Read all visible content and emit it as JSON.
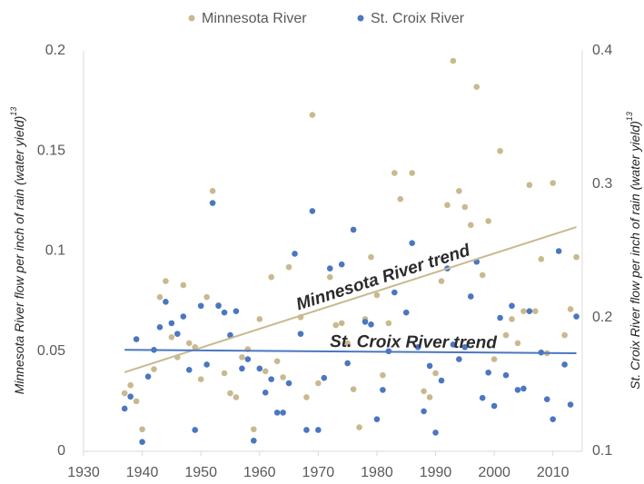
{
  "chart_data": {
    "type": "scatter",
    "y_label": "Minnesota River flow per inch of rain (water yield)",
    "y_label_sup": "13",
    "y2_label": "St. Croix River flow per inch of rain (water yield)",
    "y2_label_sup": "13",
    "xlim": [
      1930,
      2015
    ],
    "xticks": [
      1930,
      1940,
      1950,
      1960,
      1970,
      1980,
      1990,
      2000,
      2010
    ],
    "ylim": [
      0,
      0.2
    ],
    "yticks": [
      0,
      0.05,
      0.1,
      0.15,
      0.2
    ],
    "y2lim": [
      0.1,
      0.4
    ],
    "y2ticks": [
      0.1,
      0.2,
      0.3,
      0.4
    ],
    "grid": false,
    "legend": "top",
    "series": [
      {
        "name": "Minnesota River",
        "color": "#c8b98f",
        "x": [
          1937,
          1938,
          1939,
          1940,
          1942,
          1943,
          1944,
          1945,
          1946,
          1947,
          1948,
          1949,
          1950,
          1951,
          1952,
          1953,
          1954,
          1955,
          1956,
          1957,
          1958,
          1959,
          1960,
          1961,
          1962,
          1963,
          1964,
          1965,
          1967,
          1968,
          1969,
          1970,
          1972,
          1973,
          1974,
          1975,
          1976,
          1977,
          1978,
          1979,
          1980,
          1981,
          1982,
          1983,
          1984,
          1986,
          1988,
          1989,
          1990,
          1991,
          1992,
          1993,
          1994,
          1995,
          1996,
          1997,
          1998,
          1999,
          2000,
          2001,
          2002,
          2003,
          2004,
          2005,
          2006,
          2007,
          2008,
          2009,
          2010,
          2012,
          2013,
          2014
        ],
        "values": [
          0.029,
          0.033,
          0.025,
          0.011,
          0.041,
          0.077,
          0.085,
          0.057,
          0.047,
          0.083,
          0.054,
          0.052,
          0.036,
          0.077,
          0.13,
          0.073,
          0.039,
          0.029,
          0.027,
          0.047,
          0.051,
          0.011,
          0.066,
          0.04,
          0.087,
          0.045,
          0.037,
          0.092,
          0.067,
          0.027,
          0.168,
          0.034,
          0.087,
          0.063,
          0.064,
          0.054,
          0.031,
          0.012,
          0.066,
          0.097,
          0.078,
          0.038,
          0.064,
          0.139,
          0.126,
          0.139,
          0.03,
          0.027,
          0.039,
          0.085,
          0.123,
          0.195,
          0.13,
          0.122,
          0.113,
          0.182,
          0.088,
          0.115,
          0.046,
          0.15,
          0.058,
          0.066,
          0.054,
          0.07,
          0.133,
          0.07,
          0.096,
          0.049,
          0.134,
          0.058,
          0.071,
          0.097
        ]
      },
      {
        "name": "St. Croix River",
        "color": "#4a77c0",
        "axis": "y2",
        "x": [
          1937,
          1938,
          1939,
          1940,
          1941,
          1942,
          1943,
          1944,
          1945,
          1946,
          1947,
          1948,
          1949,
          1950,
          1951,
          1952,
          1953,
          1954,
          1955,
          1956,
          1957,
          1958,
          1959,
          1960,
          1961,
          1962,
          1963,
          1964,
          1965,
          1966,
          1967,
          1968,
          1969,
          1970,
          1971,
          1972,
          1974,
          1975,
          1976,
          1978,
          1979,
          1980,
          1981,
          1982,
          1983,
          1985,
          1986,
          1987,
          1988,
          1989,
          1990,
          1991,
          1992,
          1993,
          1994,
          1995,
          1996,
          1997,
          1998,
          1999,
          2000,
          2001,
          2002,
          2003,
          2004,
          2005,
          2006,
          2008,
          2009,
          2010,
          2011,
          2012,
          2013,
          2014
        ],
        "values": [
          0.132,
          0.141,
          0.184,
          0.107,
          0.156,
          0.176,
          0.193,
          0.212,
          0.196,
          0.188,
          0.201,
          0.161,
          0.116,
          0.209,
          0.165,
          0.286,
          0.209,
          0.204,
          0.187,
          0.205,
          0.162,
          0.169,
          0.108,
          0.162,
          0.144,
          0.154,
          0.129,
          0.129,
          0.151,
          0.248,
          0.188,
          0.116,
          0.28,
          0.116,
          0.155,
          0.237,
          0.24,
          0.166,
          0.266,
          0.197,
          0.195,
          0.124,
          0.146,
          0.175,
          0.219,
          0.204,
          0.256,
          0.178,
          0.13,
          0.164,
          0.114,
          0.153,
          0.237,
          0.18,
          0.169,
          0.178,
          0.216,
          0.242,
          0.14,
          0.159,
          0.134,
          0.2,
          0.157,
          0.209,
          0.146,
          0.147,
          0.205,
          0.174,
          0.139,
          0.124,
          0.25,
          0.165,
          0.135,
          0.201
        ]
      }
    ],
    "trends": [
      {
        "name": "Minnesota River trend",
        "color": "#c8b98f",
        "x": [
          1937,
          2014
        ],
        "values": [
          0.0395,
          0.112
        ]
      },
      {
        "name": "St. Croix River trend",
        "color": "#4a77c0",
        "axis": "y2",
        "x": [
          1937,
          2014
        ],
        "values": [
          0.176,
          0.1735
        ]
      }
    ]
  }
}
